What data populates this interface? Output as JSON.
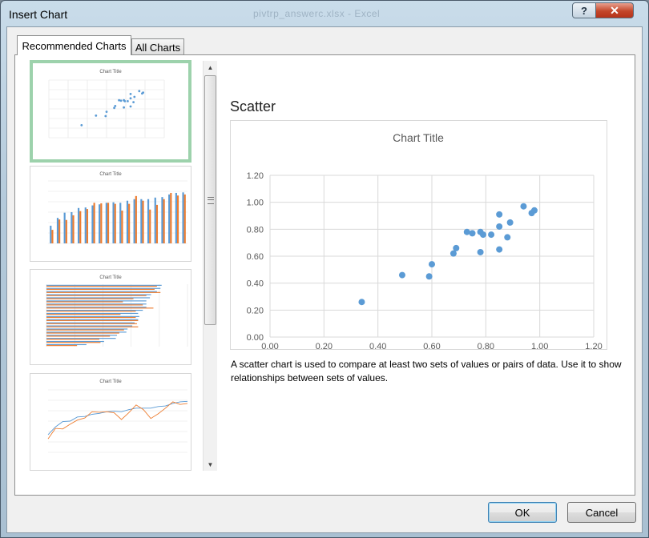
{
  "window": {
    "title": "Insert Chart",
    "background_title": "pivtrp_answerc.xlsx - Excel"
  },
  "title_buttons": {
    "help": "?",
    "close": "✕"
  },
  "tabs": [
    {
      "label": "Recommended Charts",
      "selected": true
    },
    {
      "label": "All Charts",
      "selected": false
    }
  ],
  "thumbnail_titles": [
    "Chart Title",
    "Chart Title",
    "Chart Title",
    "Chart Title"
  ],
  "selected": {
    "chart_type": "Scatter",
    "description": "A scatter chart is used to compare at least two sets of values or pairs of data. Use it to show relationships between sets of values."
  },
  "buttons": {
    "ok": "OK",
    "cancel": "Cancel"
  },
  "colors": {
    "series1": "#5b9bd5",
    "series2": "#ed7d31",
    "selection": "#9dd2ac"
  },
  "chart_data": {
    "type": "scatter",
    "title": "Chart Title",
    "xlim": [
      0,
      1.2
    ],
    "ylim": [
      0,
      1.2
    ],
    "xticks": [
      "0.00",
      "0.20",
      "0.40",
      "0.60",
      "0.80",
      "1.00",
      "1.20"
    ],
    "yticks": [
      "0.00",
      "0.20",
      "0.40",
      "0.60",
      "0.80",
      "1.00",
      "1.20"
    ],
    "grid": true,
    "points": [
      [
        0.34,
        0.26
      ],
      [
        0.49,
        0.46
      ],
      [
        0.59,
        0.45
      ],
      [
        0.6,
        0.54
      ],
      [
        0.68,
        0.62
      ],
      [
        0.69,
        0.66
      ],
      [
        0.73,
        0.78
      ],
      [
        0.75,
        0.77
      ],
      [
        0.78,
        0.78
      ],
      [
        0.79,
        0.76
      ],
      [
        0.78,
        0.63
      ],
      [
        0.82,
        0.76
      ],
      [
        0.85,
        0.91
      ],
      [
        0.85,
        0.82
      ],
      [
        0.85,
        0.65
      ],
      [
        0.88,
        0.74
      ],
      [
        0.89,
        0.85
      ],
      [
        0.94,
        0.97
      ],
      [
        0.97,
        0.92
      ],
      [
        0.98,
        0.94
      ]
    ]
  }
}
